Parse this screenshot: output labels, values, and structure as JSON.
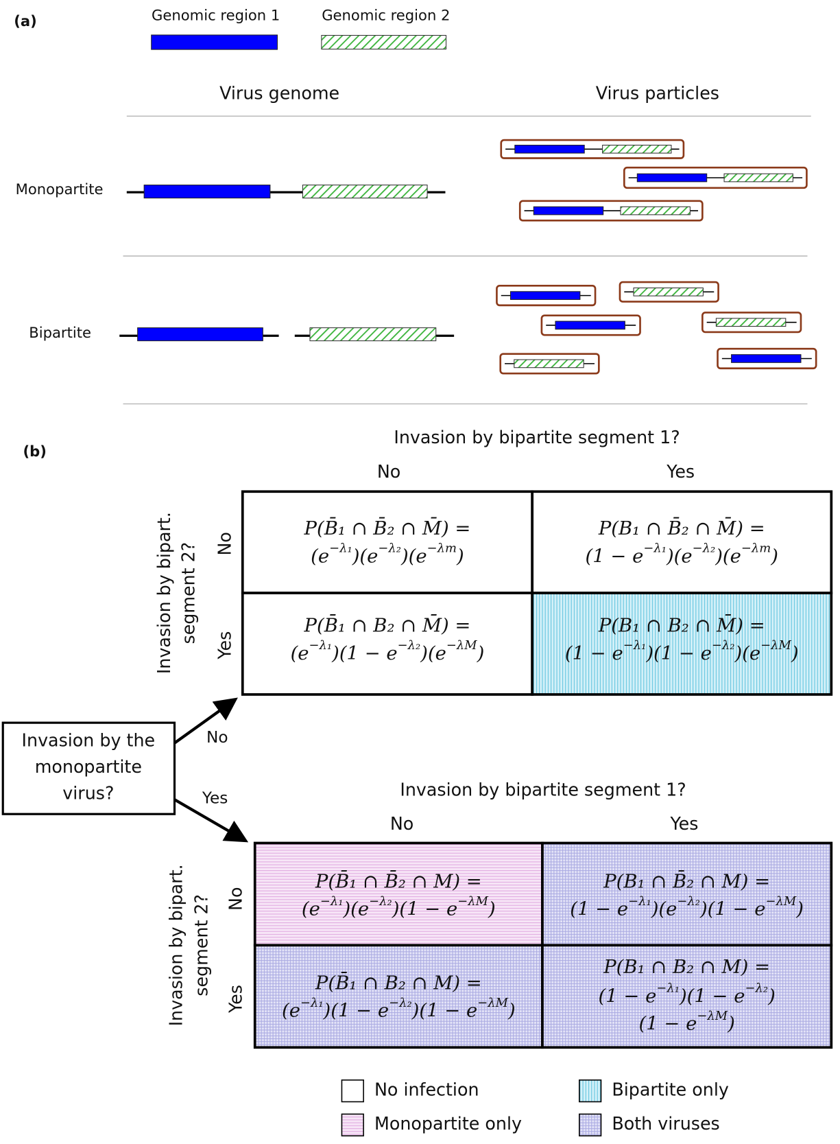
{
  "panel_a": {
    "label": "(a)",
    "legend": [
      "Genomic region 1",
      "Genomic region 2"
    ],
    "columns": [
      "Virus genome",
      "Virus particles"
    ],
    "rows": [
      "Monopartite",
      "Bipartite"
    ]
  },
  "panel_b": {
    "label": "(b)",
    "question": [
      "Invasion by the",
      "monopartite",
      "virus?"
    ],
    "branches": [
      "No",
      "Yes"
    ],
    "tables": [
      {
        "col_title": "Invasion by bipartite segment 1?",
        "col_labels": [
          "No",
          "Yes"
        ],
        "row_title": [
          "Invasion by bipart.",
          "segment 2?"
        ],
        "row_labels": [
          "No",
          "Yes"
        ],
        "cells": [
          [
            [
              [
                "P(B̄₁ ∩ B̄₂ ∩ M̄) ="
              ],
              [
                "(e",
                "−λ₁",
                ")(e",
                "−λ₂",
                ")(e",
                "−λm",
                ")"
              ]
            ],
            [
              [
                "P(B₁ ∩ B̄₂ ∩ M̄) ="
              ],
              [
                "(1 − e",
                "−λ₁",
                ")(e",
                "−λ₂",
                ")(e",
                "−λm",
                ")"
              ]
            ]
          ],
          [
            [
              [
                "P(B̄₁ ∩ B₂ ∩ M̄) ="
              ],
              [
                "(e",
                "−λ₁",
                ")(1 − e",
                "−λ₂",
                ")(e",
                "−λM",
                ")"
              ]
            ],
            [
              [
                "P(B₁ ∩ B₂ ∩ M̄) ="
              ],
              [
                "(1 − e",
                "−λ₁",
                ")(1 − e",
                "−λ₂",
                ")(e",
                "−λM",
                ")"
              ]
            ]
          ]
        ]
      },
      {
        "col_title": "Invasion by bipartite segment 1?",
        "col_labels": [
          "No",
          "Yes"
        ],
        "row_title": [
          "Invasion by bipart.",
          "segment 2?"
        ],
        "row_labels": [
          "No",
          "Yes"
        ],
        "cells": [
          [
            [
              [
                "P(B̄₁ ∩ B̄₂ ∩ M) ="
              ],
              [
                "(e",
                "−λ₁",
                ")(e",
                "−λ₂",
                ")(1 − e",
                "−λM",
                ")"
              ]
            ],
            [
              [
                "P(B₁ ∩ B̄₂ ∩ M) ="
              ],
              [
                "(1 − e",
                "−λ₁",
                ")(e",
                "−λ₂",
                ")(1 − e",
                "−λM",
                ")"
              ]
            ]
          ],
          [
            [
              [
                "P(B̄₁ ∩ B₂ ∩ M) ="
              ],
              [
                "(e",
                "−λ₁",
                ")(1 − e",
                "−λ₂",
                ")(1 − e",
                "−λM",
                ")"
              ]
            ],
            [
              [
                "P(B₁ ∩ B₂ ∩ M) ="
              ],
              [
                "(1 − e",
                "−λ₁",
                ")(1 − e",
                "−λ₂",
                ")"
              ],
              [
                "(1 − e",
                "−λM",
                ")"
              ]
            ]
          ]
        ]
      }
    ],
    "legend": [
      "No infection",
      "Monopartite only",
      "Bipartite only",
      "Both viruses"
    ]
  }
}
